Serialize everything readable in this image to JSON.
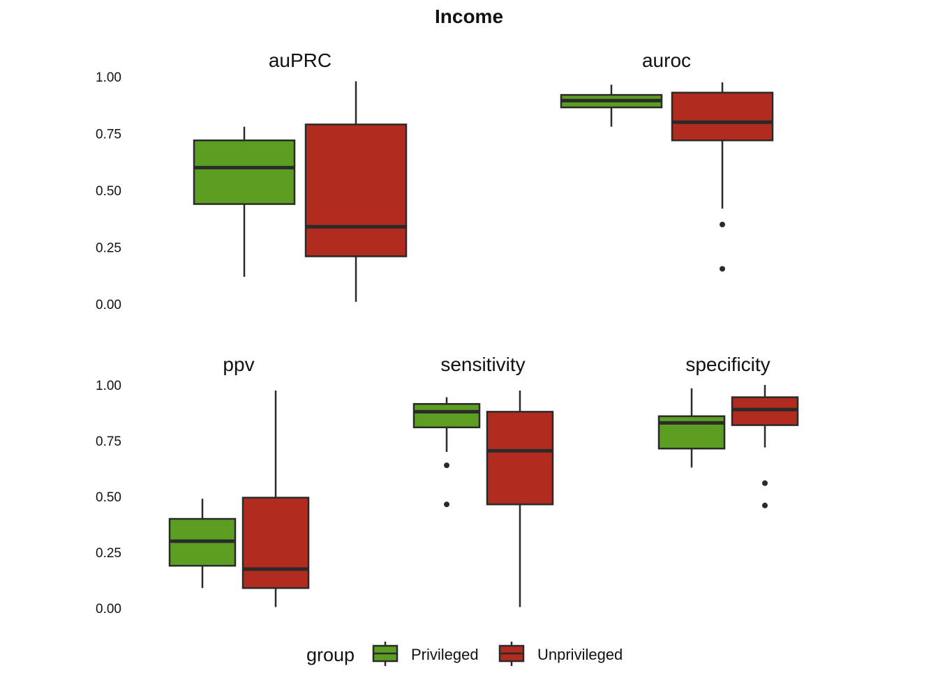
{
  "chart_data": {
    "type": "boxplot",
    "title": "Income",
    "ylim": [
      0,
      1
    ],
    "yticks": [
      "0.00",
      "0.25",
      "0.50",
      "0.75",
      "1.00"
    ],
    "grid": false,
    "legend": {
      "title": "group",
      "position": "bottom",
      "entries": [
        {
          "name": "Privileged",
          "color": "#5b9e22"
        },
        {
          "name": "Unprivileged",
          "color": "#b22b1f"
        }
      ]
    },
    "outline_color": "#2a2a2a",
    "panels": [
      {
        "label": "auPRC",
        "boxes": [
          {
            "group": "Privileged",
            "min": 0.12,
            "q1": 0.44,
            "median": 0.6,
            "q3": 0.72,
            "max": 0.78,
            "outliers": []
          },
          {
            "group": "Unprivileged",
            "min": 0.01,
            "q1": 0.21,
            "median": 0.34,
            "q3": 0.79,
            "max": 0.98,
            "outliers": []
          }
        ]
      },
      {
        "label": "auroc",
        "boxes": [
          {
            "group": "Privileged",
            "min": 0.78,
            "q1": 0.865,
            "median": 0.895,
            "q3": 0.92,
            "max": 0.965,
            "outliers": []
          },
          {
            "group": "Unprivileged",
            "min": 0.42,
            "q1": 0.72,
            "median": 0.8,
            "q3": 0.93,
            "max": 0.975,
            "outliers": [
              0.35,
              0.155
            ]
          }
        ]
      },
      {
        "label": "ppv",
        "boxes": [
          {
            "group": "Privileged",
            "min": 0.09,
            "q1": 0.19,
            "median": 0.3,
            "q3": 0.4,
            "max": 0.49,
            "outliers": []
          },
          {
            "group": "Unprivileged",
            "min": 0.005,
            "q1": 0.09,
            "median": 0.175,
            "q3": 0.495,
            "max": 0.975,
            "outliers": []
          }
        ]
      },
      {
        "label": "sensitivity",
        "boxes": [
          {
            "group": "Privileged",
            "min": 0.7,
            "q1": 0.81,
            "median": 0.88,
            "q3": 0.915,
            "max": 0.945,
            "outliers": [
              0.64,
              0.465
            ]
          },
          {
            "group": "Unprivileged",
            "min": 0.005,
            "q1": 0.465,
            "median": 0.705,
            "q3": 0.88,
            "max": 0.975,
            "outliers": []
          }
        ]
      },
      {
        "label": "specificity",
        "boxes": [
          {
            "group": "Privileged",
            "min": 0.63,
            "q1": 0.715,
            "median": 0.83,
            "q3": 0.86,
            "max": 0.985,
            "outliers": []
          },
          {
            "group": "Unprivileged",
            "min": 0.72,
            "q1": 0.82,
            "median": 0.89,
            "q3": 0.945,
            "max": 1.0,
            "outliers": [
              0.56,
              0.46
            ]
          }
        ]
      }
    ]
  }
}
